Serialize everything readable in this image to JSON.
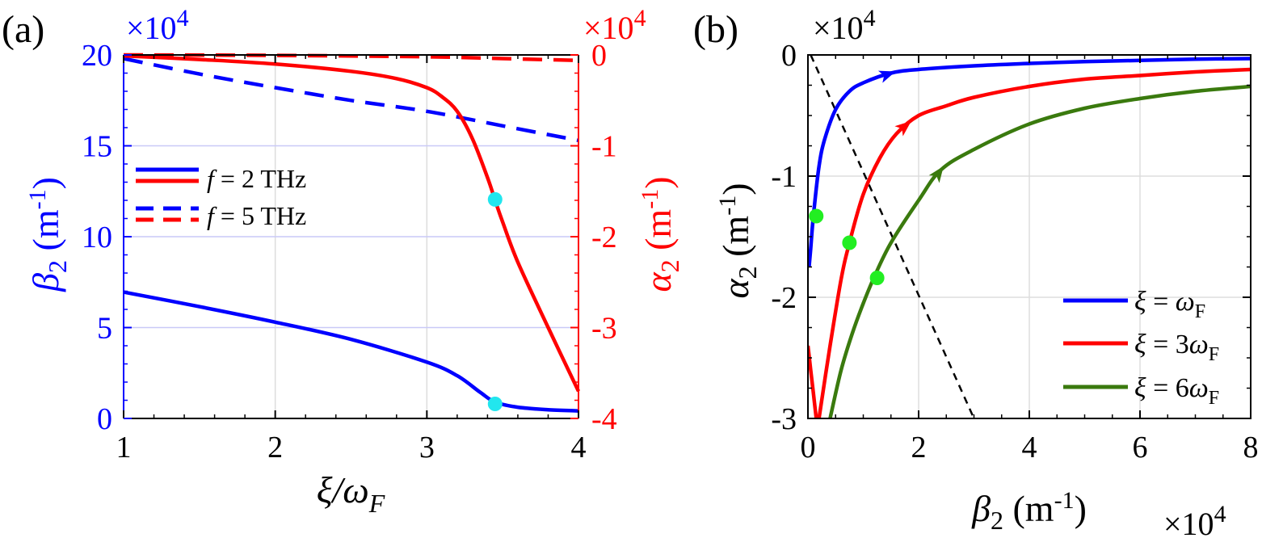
{
  "colors": {
    "blue": "#0000ff",
    "red": "#ff0000",
    "green": "#3a7a0e",
    "cyan": "#22e6ee",
    "lime": "#22ee22",
    "black": "#000000",
    "grid_light": "#dddddd",
    "grid_blue": "#c9c9f7"
  },
  "chart_data": [
    {
      "panel_label": "(a)",
      "type": "line",
      "x_axis": {
        "ticks": [
          1,
          2,
          3,
          4
        ],
        "tick_labels": [
          "1",
          "2",
          "3",
          "4"
        ],
        "range": [
          1,
          4
        ]
      },
      "y_left": {
        "ticks": [
          0,
          5,
          10,
          15,
          20
        ],
        "tick_labels": [
          "0",
          "5",
          "10",
          "15",
          "20"
        ],
        "range": [
          0,
          20
        ],
        "exponent_label": "×10",
        "exponent_power": "4"
      },
      "y_right": {
        "ticks": [
          -4,
          -3,
          -2,
          -1,
          0
        ],
        "tick_labels": [
          "-4",
          "-3",
          "-2",
          "-1",
          "0"
        ],
        "range": [
          -4,
          0
        ],
        "exponent_label": "×10",
        "exponent_power": "4"
      },
      "legend": {
        "placement": "center-left",
        "entries": [
          {
            "prefix": "f",
            "suffix": " = 2 THz",
            "style": "solid"
          },
          {
            "prefix": "f",
            "suffix": " = 5 THz",
            "style": "dashed"
          }
        ]
      },
      "series": [
        {
          "quantity": "beta2",
          "f_THz": 2,
          "axis": "left",
          "color": "blue",
          "style": "solid",
          "x": [
            1.0,
            1.5,
            2.0,
            2.5,
            3.0,
            3.2,
            3.35,
            3.45,
            3.6,
            3.8,
            4.0
          ],
          "y": [
            6.95,
            6.15,
            5.3,
            4.35,
            3.1,
            2.35,
            1.45,
            0.9,
            0.62,
            0.48,
            0.42
          ]
        },
        {
          "quantity": "beta2",
          "f_THz": 5,
          "axis": "left",
          "color": "blue",
          "style": "dashed",
          "x": [
            1.0,
            1.5,
            2.0,
            2.5,
            3.0,
            3.5,
            4.0
          ],
          "y": [
            19.8,
            18.95,
            18.2,
            17.5,
            16.9,
            16.1,
            15.3
          ]
        },
        {
          "quantity": "alpha2",
          "f_THz": 2,
          "axis": "right",
          "color": "red",
          "style": "solid",
          "x": [
            1.0,
            1.5,
            2.0,
            2.5,
            2.8,
            3.0,
            3.1,
            3.2,
            3.3,
            3.4,
            3.45,
            3.5,
            3.6,
            3.8,
            4.0
          ],
          "y": [
            -0.01,
            -0.05,
            -0.1,
            -0.18,
            -0.26,
            -0.36,
            -0.46,
            -0.62,
            -0.92,
            -1.35,
            -1.6,
            -1.84,
            -2.28,
            -3.0,
            -3.7
          ]
        },
        {
          "quantity": "alpha2",
          "f_THz": 5,
          "axis": "right",
          "color": "red",
          "style": "dashed",
          "x": [
            1.0,
            2.0,
            3.0,
            3.5,
            4.0
          ],
          "y": [
            0.0,
            -0.005,
            -0.02,
            -0.04,
            -0.06
          ]
        }
      ],
      "markers": [
        {
          "axis": "left",
          "x": 3.45,
          "y": 0.8,
          "color": "cyan"
        },
        {
          "axis": "right",
          "x": 3.45,
          "y": -1.59,
          "color": "cyan"
        }
      ]
    },
    {
      "panel_label": "(b)",
      "type": "line",
      "x_axis": {
        "ticks": [
          0,
          2,
          4,
          6,
          8
        ],
        "tick_labels": [
          "0",
          "2",
          "4",
          "6",
          "8"
        ],
        "range": [
          0,
          8
        ],
        "exponent_label": "×10",
        "exponent_power": "4"
      },
      "y_axis": {
        "ticks": [
          -3,
          -2,
          -1,
          0
        ],
        "tick_labels": [
          "-3",
          "-2",
          "-1",
          "0"
        ],
        "range": [
          -3,
          0
        ],
        "exponent_label": "×10",
        "exponent_power": "4"
      },
      "legend": {
        "placement": "bottom-right",
        "entries": [
          {
            "lhs": "ξ",
            "eq": " = ",
            "coef": "",
            "rhs": "ω",
            "sub": "F"
          },
          {
            "lhs": "ξ",
            "eq": " = ",
            "coef": "3",
            "rhs": "ω",
            "sub": "F"
          },
          {
            "lhs": "ξ",
            "eq": " = ",
            "coef": "6",
            "rhs": "ω",
            "sub": "F"
          }
        ]
      },
      "series": [
        {
          "xi_over_omegaF": 1,
          "color": "blue",
          "x": [
            0.02,
            0.05,
            0.1,
            0.2,
            0.3,
            0.5,
            0.75,
            1.0,
            1.5,
            2.0,
            3.0,
            4.0,
            5.0,
            6.0,
            7.0,
            8.0
          ],
          "y": [
            -1.75,
            -1.6,
            -1.32,
            -0.92,
            -0.7,
            -0.45,
            -0.3,
            -0.23,
            -0.15,
            -0.12,
            -0.09,
            -0.07,
            -0.055,
            -0.045,
            -0.035,
            -0.03
          ],
          "arrow_at": [
            1.5,
            -0.15
          ]
        },
        {
          "xi_over_omegaF": 3,
          "color": "red",
          "x": [
            0.2,
            0.4,
            0.6,
            0.75,
            1.0,
            1.3,
            1.6,
            2.0,
            2.5,
            3.0,
            4.0,
            5.0,
            6.0,
            7.0,
            8.0
          ],
          "y": [
            -3.0,
            -2.4,
            -1.85,
            -1.55,
            -1.15,
            -0.85,
            -0.65,
            -0.5,
            -0.42,
            -0.35,
            -0.26,
            -0.2,
            -0.17,
            -0.14,
            -0.12
          ],
          "arrow_at": [
            1.8,
            -0.57
          ]
        },
        {
          "xi_over_omegaF": 3,
          "color": "red",
          "x": [
            0.0,
            0.05,
            0.1,
            0.15
          ],
          "y": [
            -2.4,
            -2.6,
            -2.8,
            -3.0
          ]
        },
        {
          "xi_over_omegaF": 6,
          "color": "green",
          "x": [
            0.4,
            0.6,
            0.8,
            1.0,
            1.2,
            1.5,
            2.0,
            2.4,
            3.0,
            4.0,
            5.0,
            6.0,
            7.0,
            8.0
          ],
          "y": [
            -3.0,
            -2.6,
            -2.3,
            -2.05,
            -1.83,
            -1.55,
            -1.2,
            -0.95,
            -0.78,
            -0.57,
            -0.44,
            -0.36,
            -0.3,
            -0.26
          ],
          "arrow_at": [
            2.4,
            -0.95
          ]
        }
      ],
      "reference_line": {
        "style": "dashed",
        "color": "black",
        "x": [
          0.05,
          3.0
        ],
        "y": [
          0.0,
          -3.0
        ]
      },
      "markers": [
        {
          "x": 0.15,
          "y": -1.33,
          "color": "lime"
        },
        {
          "x": 0.75,
          "y": -1.55,
          "color": "lime"
        },
        {
          "x": 1.25,
          "y": -1.84,
          "color": "lime"
        }
      ]
    }
  ]
}
